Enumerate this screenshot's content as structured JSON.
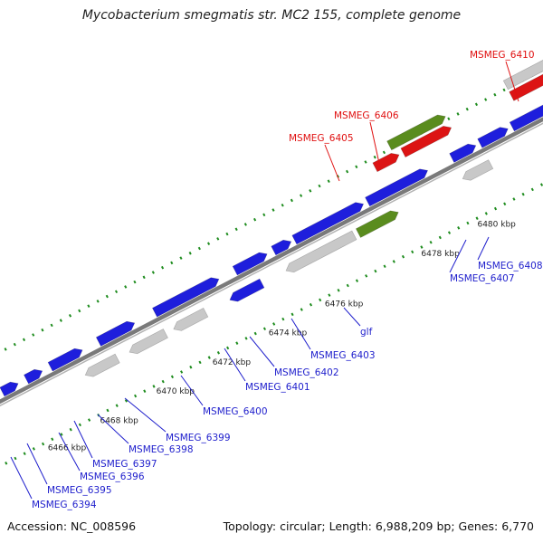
{
  "title": "Mycobacterium smegmatis str. MC2 155, complete genome",
  "footer": {
    "accession": "Accession: NC_008596",
    "summary": "Topology: circular; Length: 6,988,209 bp; Genes: 6,770"
  },
  "colors": {
    "forward_gene": "#1e1edc",
    "hypothetical_gene": "#c8c8c8",
    "rna_gene": "#dc1414",
    "green_gene": "#5a8c1e",
    "backbone": "#7a7a7a",
    "tick": "#1e8c1e",
    "label_blue": "#1e1ecc",
    "label_red": "#e01010"
  },
  "ticks": [
    "6466 kbp",
    "6468 kbp",
    "6470 kbp",
    "6472 kbp",
    "6474 kbp",
    "6476 kbp",
    "6478 kbp",
    "6480 kbp"
  ],
  "genes_red": [
    "MSMEG_6405",
    "MSMEG_6406",
    "MSMEG_6410"
  ],
  "genes_blue": [
    "MSMEG_6394",
    "MSMEG_6395",
    "MSMEG_6396",
    "MSMEG_6397",
    "MSMEG_6398",
    "MSMEG_6399",
    "MSMEG_6400",
    "MSMEG_6401",
    "MSMEG_6402",
    "MSMEG_6403",
    "glf",
    "MSMEG_6407",
    "MSMEG_6408"
  ]
}
